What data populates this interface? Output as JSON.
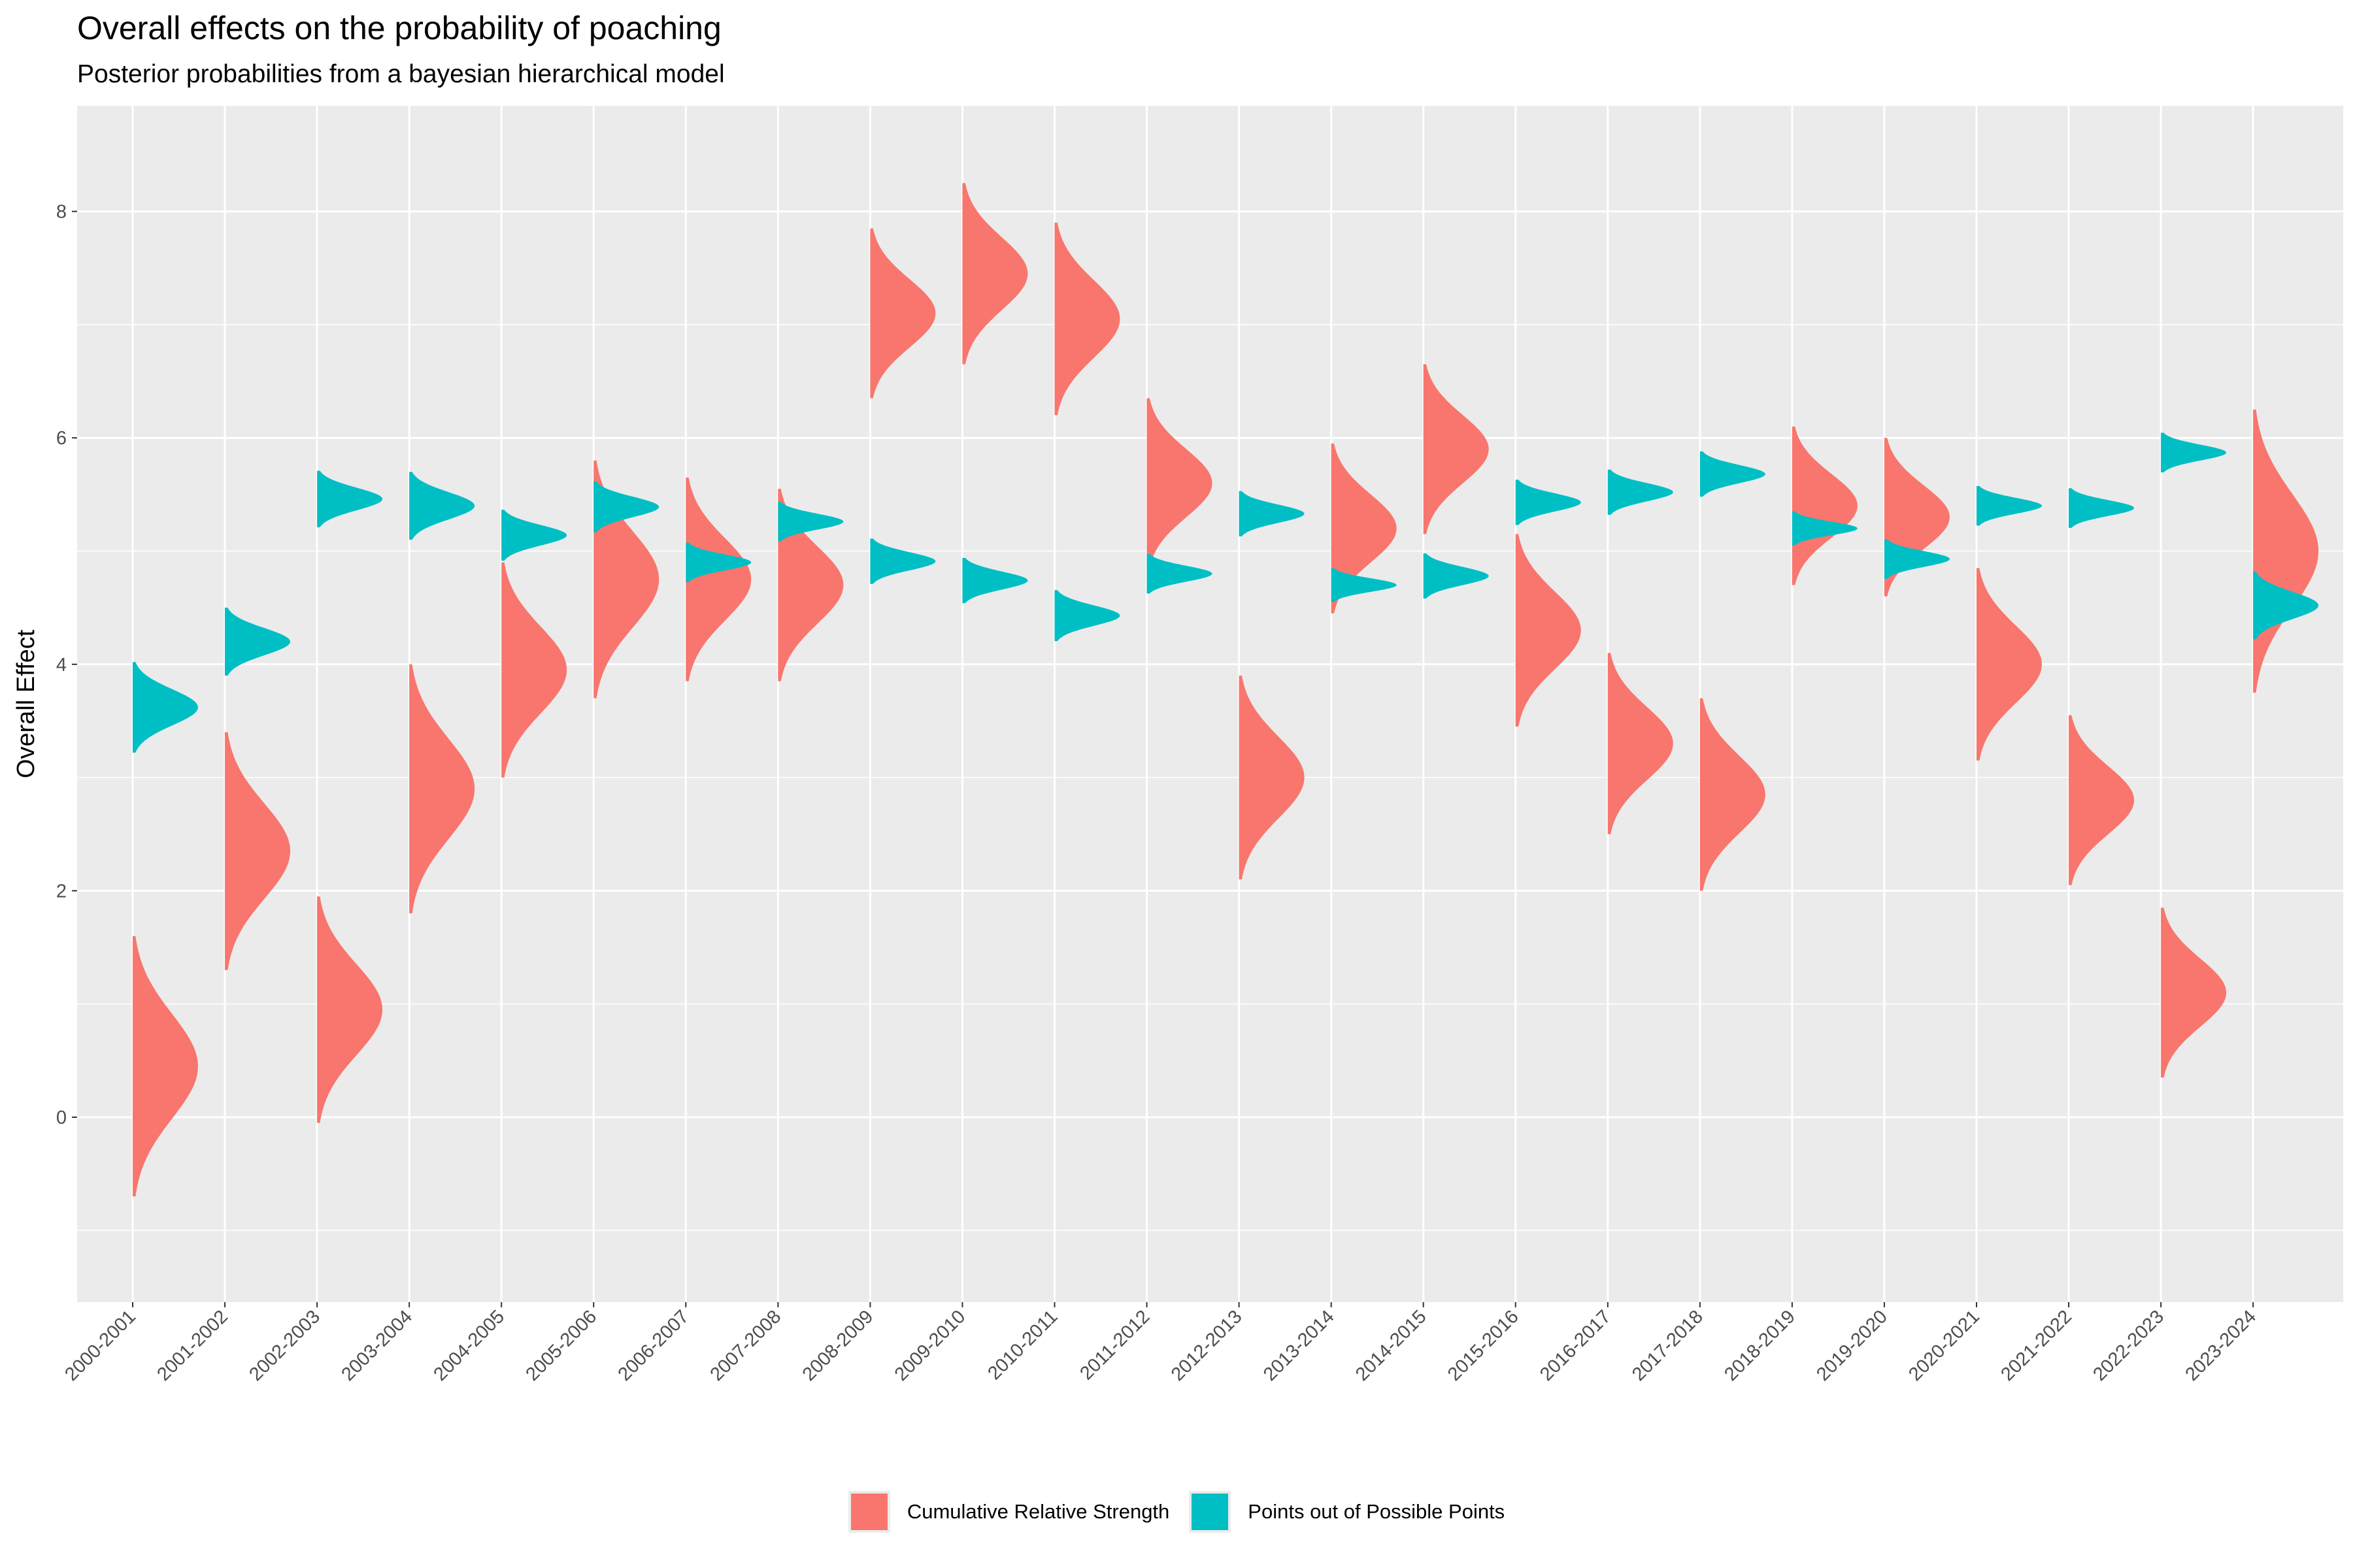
{
  "chart_data": {
    "type": "area",
    "title": "Overall effects on the probability of poaching",
    "subtitle": "Posterior probabilities from a bayesian hierarchical model",
    "xlabel": "",
    "ylabel": "Overall Effect",
    "ylim": [
      -1.65,
      8.9
    ],
    "yticks": [
      0,
      2,
      4,
      6,
      8
    ],
    "grid": true,
    "legend_position": "bottom",
    "categories": [
      "2000-2001",
      "2001-2002",
      "2002-2003",
      "2003-2004",
      "2004-2005",
      "2005-2006",
      "2006-2007",
      "2007-2008",
      "2008-2009",
      "2009-2010",
      "2010-2011",
      "2011-2012",
      "2012-2013",
      "2013-2014",
      "2014-2015",
      "2015-2016",
      "2016-2017",
      "2017-2018",
      "2018-2019",
      "2019-2020",
      "2020-2021",
      "2021-2022",
      "2022-2023",
      "2023-2024"
    ],
    "series": [
      {
        "name": "Cumulative Relative Strength",
        "color": "#F8766D",
        "posterior_mode": [
          0.45,
          2.35,
          0.95,
          2.9,
          3.95,
          4.75,
          4.75,
          4.7,
          7.1,
          7.45,
          7.05,
          5.6,
          3.0,
          5.2,
          5.9,
          4.3,
          3.3,
          2.85,
          5.4,
          5.3,
          4.0,
          2.8,
          1.1,
          5.0
        ],
        "sd": [
          0.46,
          0.42,
          0.4,
          0.44,
          0.38,
          0.42,
          0.36,
          0.34,
          0.3,
          0.32,
          0.34,
          0.3,
          0.36,
          0.3,
          0.3,
          0.34,
          0.32,
          0.34,
          0.28,
          0.28,
          0.34,
          0.3,
          0.3,
          0.5
        ]
      },
      {
        "name": "Points out of Possible Points",
        "color": "#00BFC4",
        "posterior_mode": [
          3.62,
          4.2,
          5.46,
          5.4,
          5.14,
          5.39,
          4.9,
          5.26,
          4.91,
          4.74,
          4.43,
          4.8,
          5.33,
          4.7,
          4.78,
          5.43,
          5.52,
          5.68,
          5.2,
          4.93,
          5.4,
          5.38,
          5.87,
          4.52
        ],
        "sd": [
          0.16,
          0.12,
          0.1,
          0.12,
          0.09,
          0.09,
          0.07,
          0.07,
          0.08,
          0.08,
          0.09,
          0.07,
          0.08,
          0.06,
          0.08,
          0.08,
          0.08,
          0.08,
          0.06,
          0.07,
          0.07,
          0.07,
          0.07,
          0.12
        ]
      }
    ]
  }
}
